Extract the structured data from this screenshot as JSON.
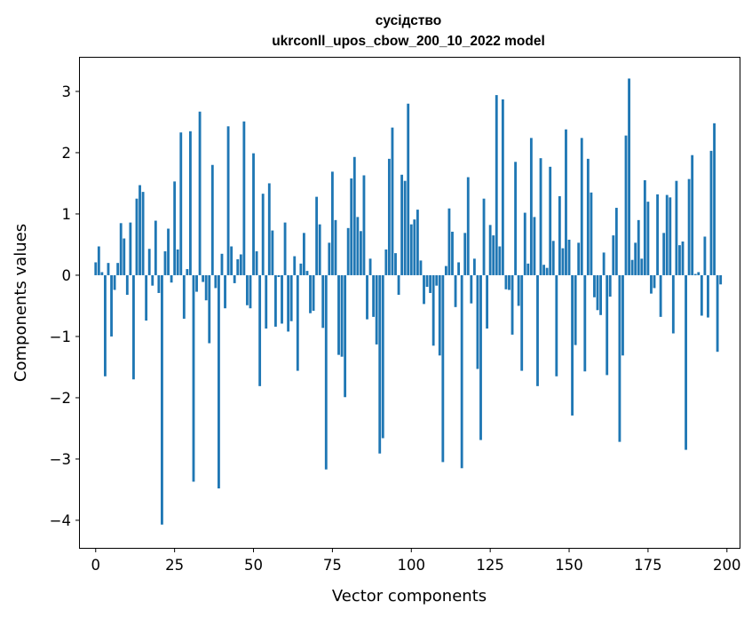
{
  "chart_data": {
    "type": "bar",
    "title_line1": "сусідство",
    "title_line2": "ukrconll_upos_cbow_200_10_2022 model",
    "xlabel": "Vector components",
    "ylabel": "Components values",
    "xlim": [
      -5,
      204
    ],
    "ylim": [
      -4.45,
      3.55
    ],
    "x_ticks": [
      0,
      25,
      50,
      75,
      100,
      125,
      150,
      175,
      200
    ],
    "x_tick_labels": [
      "0",
      "25",
      "50",
      "75",
      "100",
      "125",
      "150",
      "175",
      "200"
    ],
    "y_ticks": [
      -4,
      -3,
      -2,
      -1,
      0,
      1,
      2,
      3
    ],
    "y_tick_labels": [
      "−4",
      "−3",
      "−2",
      "−1",
      "0",
      "1",
      "2",
      "3"
    ],
    "bar_color": "#1f77b4",
    "values": [
      0.21,
      0.47,
      0.05,
      -1.65,
      0.2,
      -1.0,
      -0.24,
      0.2,
      0.85,
      0.6,
      -0.32,
      0.86,
      -1.7,
      1.25,
      1.47,
      1.36,
      -0.74,
      0.43,
      -0.17,
      0.89,
      -0.29,
      -4.07,
      0.39,
      0.76,
      -0.12,
      1.53,
      0.42,
      2.33,
      -0.71,
      0.1,
      2.35,
      -3.37,
      -0.27,
      2.67,
      -0.11,
      -0.41,
      -1.11,
      1.8,
      -0.21,
      -3.48,
      0.35,
      -0.54,
      2.43,
      0.47,
      -0.13,
      0.26,
      0.34,
      2.51,
      -0.49,
      -0.54,
      1.99,
      0.39,
      -1.81,
      1.33,
      -0.87,
      1.5,
      0.73,
      -0.84,
      -0.03,
      -0.79,
      0.86,
      -0.92,
      -0.75,
      0.31,
      -1.56,
      0.19,
      0.69,
      0.07,
      -0.62,
      -0.58,
      1.28,
      0.83,
      -0.86,
      -3.17,
      0.53,
      1.69,
      0.9,
      -1.3,
      -1.33,
      -1.99,
      0.77,
      1.58,
      1.93,
      0.95,
      0.72,
      1.63,
      -0.72,
      0.27,
      -0.68,
      -1.13,
      -2.91,
      -2.66,
      0.42,
      1.9,
      2.41,
      0.36,
      -0.32,
      1.64,
      1.54,
      2.8,
      0.83,
      0.91,
      1.07,
      0.24,
      -0.47,
      -0.19,
      -0.29,
      -1.15,
      -0.17,
      -1.31,
      -3.05,
      0.15,
      1.09,
      0.71,
      -0.52,
      0.21,
      -3.15,
      0.69,
      1.6,
      -0.46,
      0.27,
      -1.53,
      -2.69,
      1.25,
      -0.87,
      0.82,
      0.65,
      2.94,
      0.47,
      2.87,
      -0.23,
      -0.24,
      -0.97,
      1.85,
      -0.5,
      -1.56,
      1.02,
      0.19,
      2.24,
      0.95,
      -1.81,
      1.91,
      0.17,
      0.12,
      1.77,
      0.56,
      -1.65,
      1.29,
      0.44,
      2.38,
      0.58,
      -2.29,
      -1.14,
      0.53,
      2.24,
      -1.57,
      1.9,
      1.35,
      -0.36,
      -0.57,
      -0.65,
      0.37,
      -1.63,
      -0.35,
      0.65,
      1.1,
      -2.72,
      -1.31,
      2.28,
      3.21,
      0.25,
      0.53,
      0.9,
      0.27,
      1.55,
      1.2,
      -0.3,
      -0.21,
      1.32,
      -0.68,
      0.69,
      1.31,
      1.27,
      -0.95,
      1.54,
      0.49,
      0.55,
      -2.85,
      1.57,
      1.96,
      0.02,
      0.05,
      -0.66,
      0.63,
      -0.69,
      2.03,
      2.48,
      -1.25,
      -0.15
    ]
  }
}
